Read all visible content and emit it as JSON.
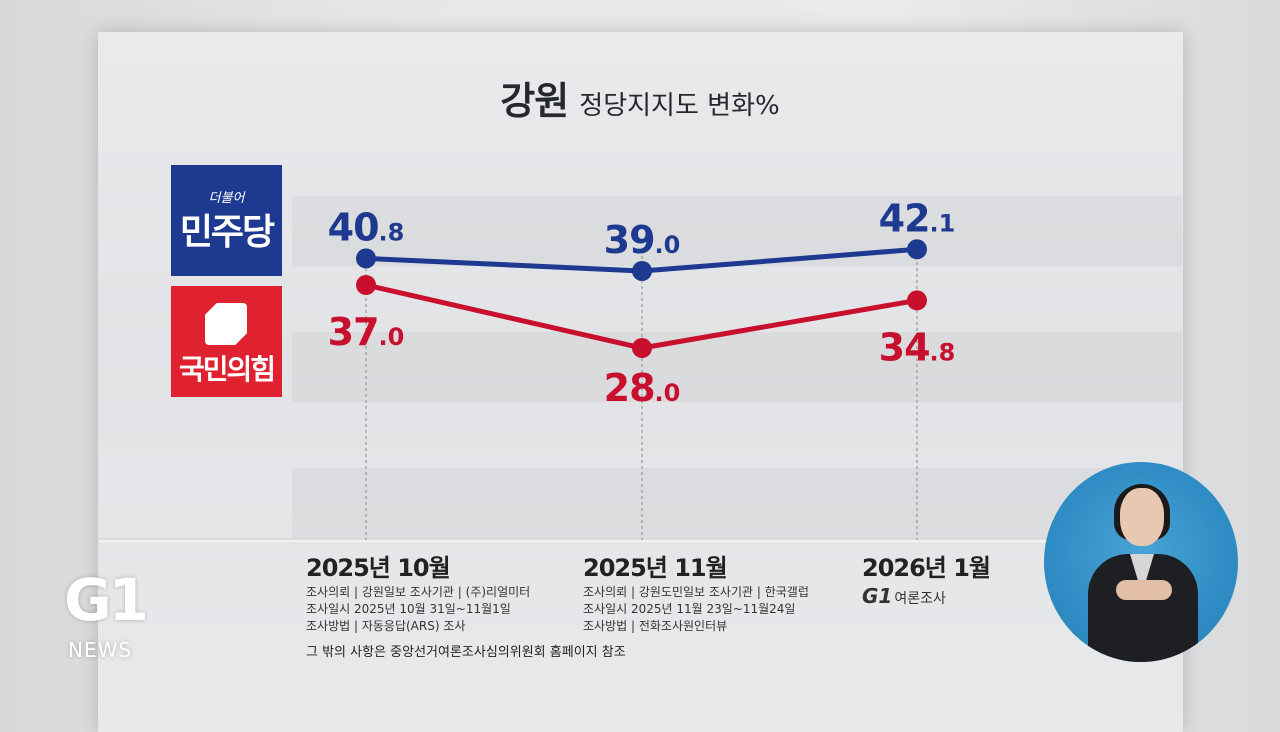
{
  "title": {
    "main": "강원",
    "sub": "정당지지도 변화%"
  },
  "parties": {
    "democratic": {
      "logo_small": "더불어",
      "logo_big": "민주당",
      "color": "#1d3990"
    },
    "ppp": {
      "logo_big": "국민의힘",
      "color": "#c8102e"
    }
  },
  "chart_data": {
    "type": "line",
    "categories": [
      "2025년 10월",
      "2025년 11월",
      "2026년 1월"
    ],
    "series": [
      {
        "name": "더불어민주당",
        "color": "#1d3990",
        "values": [
          40.8,
          39.0,
          42.1
        ],
        "labels": [
          {
            "int": "40",
            "dec": ".8"
          },
          {
            "int": "39",
            "dec": ".0"
          },
          {
            "int": "42",
            "dec": ".1"
          }
        ]
      },
      {
        "name": "국민의힘",
        "color": "#c8102e",
        "values": [
          37.0,
          28.0,
          34.8
        ],
        "labels": [
          {
            "int": "37",
            "dec": ".0"
          },
          {
            "int": "28",
            "dec": ".0"
          },
          {
            "int": "34",
            "dec": ".8"
          }
        ]
      }
    ],
    "ylim": [
      20,
      45
    ]
  },
  "surveys": [
    {
      "lines": [
        "조사의뢰 | 강원일보    조사기관 | (주)리얼미터",
        "조사일시 2025년 10월 31일~11월1일",
        "조사방법 | 자동응답(ARS) 조사"
      ]
    },
    {
      "lines": [
        "조사의뢰 | 강원도민일보    조사기관 | 한국갤럽",
        "조사일시 2025년 11월 23일~11월24일",
        "조사방법 | 전화조사원인터뷰"
      ]
    }
  ],
  "g1_poll": {
    "logo": "G1",
    "label": "여론조사"
  },
  "footnote": "그 밖의 사항은 중앙선거여론조사심의위원회 홈페이지 참조",
  "brand": {
    "logo": "G1",
    "news": "NEWS"
  }
}
